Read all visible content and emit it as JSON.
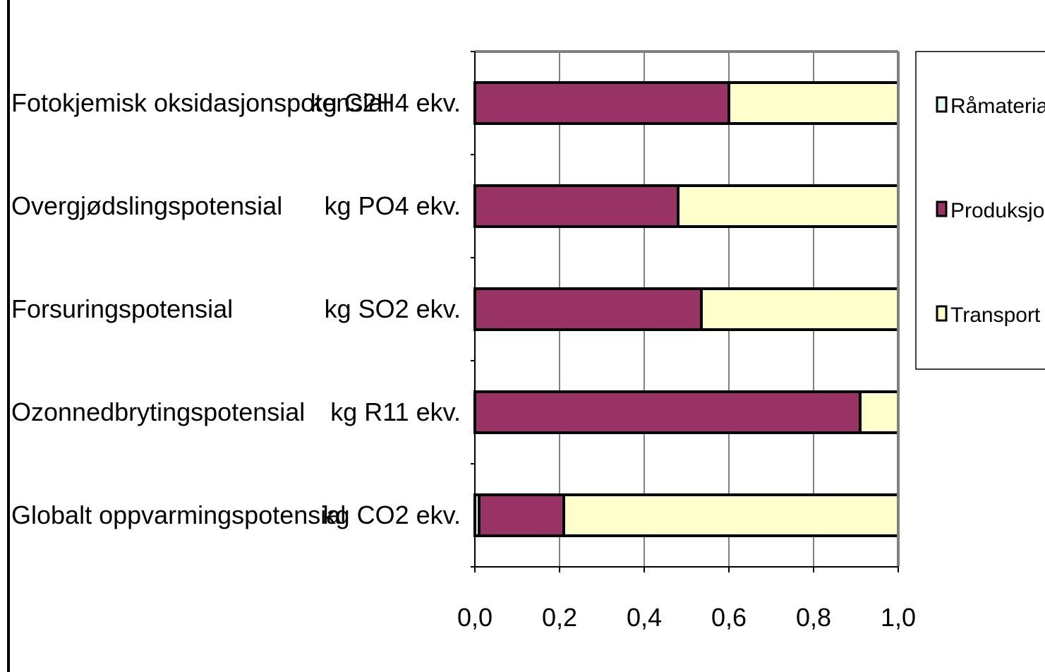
{
  "chart_data": {
    "type": "bar",
    "orientation": "horizontal",
    "stacked": true,
    "categories": [
      "Fotokjemisk oksidasjonspotensial",
      "Overgjødslingspotensial",
      "Forsuringspotensial",
      "Ozonnedbrytingspotensial",
      "Globalt oppvarmingspotensial"
    ],
    "units": [
      "kg C2H4 ekv.",
      "kg PO4 ekv.",
      "kg SO2 ekv.",
      "kg R11 ekv.",
      "kg CO2 ekv."
    ],
    "series": [
      {
        "name": "Råmaterialer",
        "color": "#e6f7fb",
        "values": [
          0.0,
          0.0,
          0.0,
          0.0,
          0.01
        ]
      },
      {
        "name": "Produksjon",
        "color": "#993366",
        "values": [
          0.6,
          0.48,
          0.535,
          0.91,
          0.2
        ]
      },
      {
        "name": "Transport",
        "color": "#ffffcc",
        "values": [
          0.4,
          0.52,
          0.465,
          0.09,
          0.79
        ]
      }
    ],
    "xlim": [
      0,
      1
    ],
    "xticks": [
      "0,0",
      "0,2",
      "0,4",
      "0,6",
      "0,8",
      "1,0"
    ],
    "grid": true,
    "legend": "right"
  }
}
